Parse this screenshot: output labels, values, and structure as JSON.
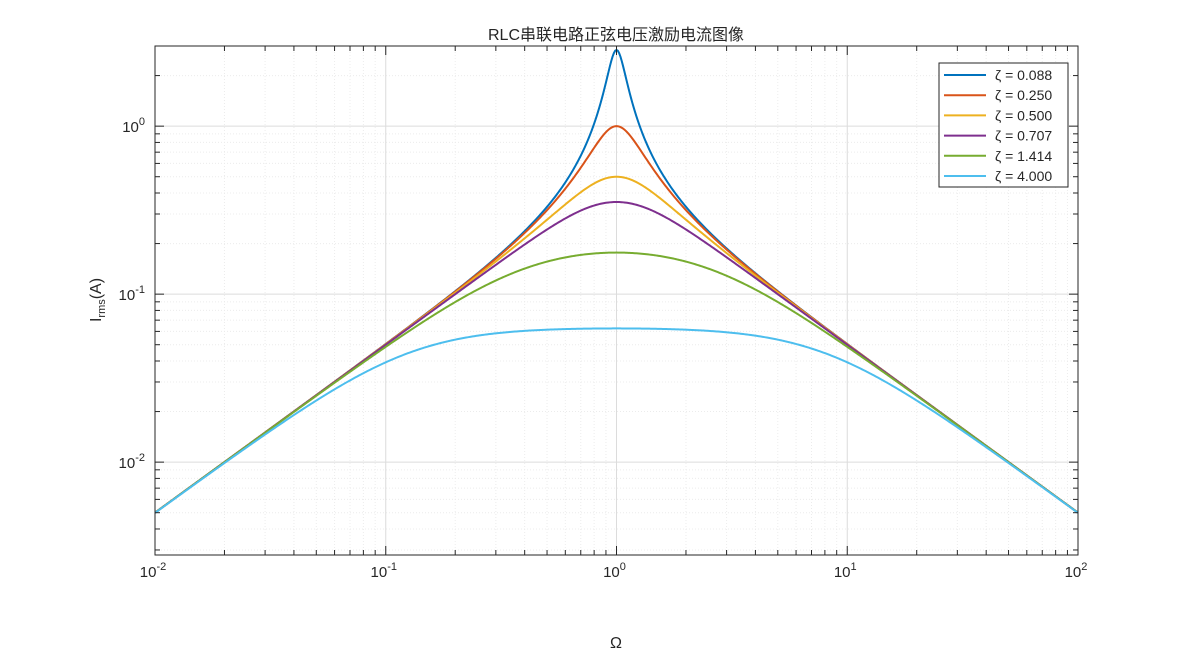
{
  "chart_data": {
    "type": "line",
    "title": "RLC串联电路正弦电压激励电流图像",
    "xlabel": "Ω",
    "ylabel_main": "I",
    "ylabel_sub": "rms",
    "ylabel_tail": "(A)",
    "xscale": "log",
    "yscale": "log",
    "xlim": [
      0.01,
      100
    ],
    "ylim": [
      0.0028,
      3.0
    ],
    "grid": true,
    "minor_grid": true,
    "legend_position": "top-right",
    "x_ticks": [
      {
        "base": "10",
        "exp": "-2",
        "value": 0.01
      },
      {
        "base": "10",
        "exp": "-1",
        "value": 0.1
      },
      {
        "base": "10",
        "exp": "0",
        "value": 1
      },
      {
        "base": "10",
        "exp": "1",
        "value": 10
      },
      {
        "base": "10",
        "exp": "2",
        "value": 100
      }
    ],
    "y_ticks": [
      {
        "base": "10",
        "exp": "-2",
        "value": 0.01
      },
      {
        "base": "10",
        "exp": "-1",
        "value": 0.1
      },
      {
        "base": "10",
        "exp": "0",
        "value": 1
      }
    ],
    "x": [
      0.01,
      0.02,
      0.05,
      0.1,
      0.2,
      0.5,
      0.8,
      1,
      1.25,
      2,
      5,
      10,
      20,
      50,
      100
    ],
    "series": [
      {
        "name": "ζ = 0.088",
        "color": "#0072BD",
        "zeta": 0.088,
        "values": [
          0.005,
          0.01,
          0.025,
          0.0505,
          0.104,
          0.326,
          1.09,
          2.84,
          1.09,
          0.326,
          0.104,
          0.0505,
          0.025,
          0.01,
          0.005
        ]
      },
      {
        "name": "ζ = 0.250",
        "color": "#D95319",
        "zeta": 0.25,
        "values": [
          0.005,
          0.01,
          0.025,
          0.0505,
          0.104,
          0.316,
          0.639,
          1.0,
          0.639,
          0.316,
          0.104,
          0.0505,
          0.025,
          0.01,
          0.005
        ]
      },
      {
        "name": "ζ = 0.500",
        "color": "#EDB120",
        "zeta": 0.5,
        "values": [
          0.005,
          0.01,
          0.025,
          0.0503,
          0.102,
          0.277,
          0.445,
          0.5,
          0.445,
          0.277,
          0.102,
          0.0503,
          0.025,
          0.01,
          0.005
        ]
      },
      {
        "name": "ζ = 0.707",
        "color": "#7E2F8E",
        "zeta": 0.707,
        "values": [
          0.005,
          0.01,
          0.025,
          0.0502,
          0.1,
          0.243,
          0.337,
          0.354,
          0.337,
          0.243,
          0.1,
          0.0502,
          0.025,
          0.01,
          0.005
        ]
      },
      {
        "name": "ζ = 1.414",
        "color": "#77AC30",
        "zeta": 1.414,
        "values": [
          0.005,
          0.01,
          0.0249,
          0.0495,
          0.0943,
          0.158,
          0.174,
          0.177,
          0.174,
          0.158,
          0.0943,
          0.0495,
          0.0249,
          0.01,
          0.005
        ]
      },
      {
        "name": "ζ = 4.000",
        "color": "#4DBEEE",
        "zeta": 4.0,
        "values": [
          0.005,
          0.00995,
          0.0236,
          0.0398,
          0.0539,
          0.0613,
          0.0624,
          0.0625,
          0.0624,
          0.0613,
          0.0539,
          0.0398,
          0.0236,
          0.00995,
          0.005
        ]
      }
    ]
  }
}
